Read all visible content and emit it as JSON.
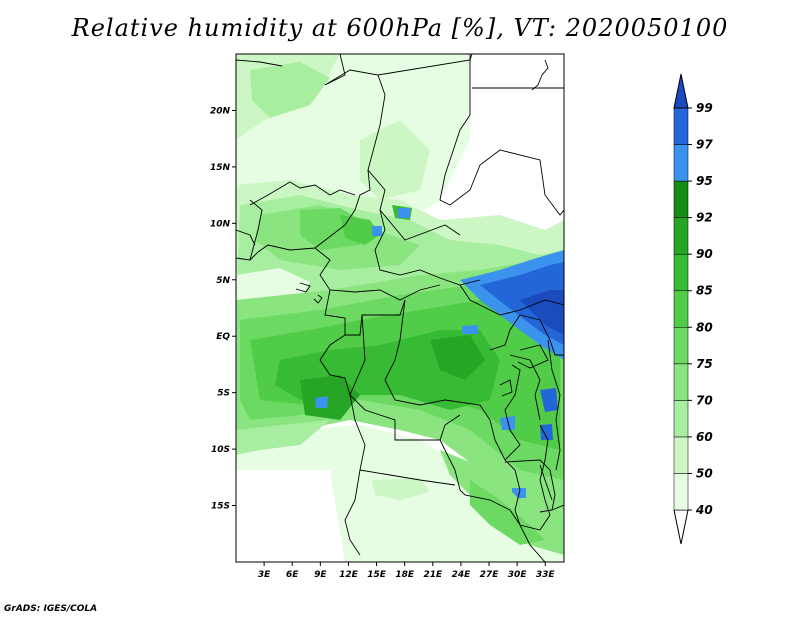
{
  "title": "Relative humidity at 600hPa [%], VT: 2020050100",
  "credit": "GrADS: IGES/COLA",
  "map": {
    "lon_range": [
      0,
      35
    ],
    "lat_range": [
      -20,
      25
    ],
    "lon_ticks": [
      {
        "value": 3,
        "label": "3E"
      },
      {
        "value": 6,
        "label": "6E"
      },
      {
        "value": 9,
        "label": "9E"
      },
      {
        "value": 12,
        "label": "12E"
      },
      {
        "value": 15,
        "label": "15E"
      },
      {
        "value": 18,
        "label": "18E"
      },
      {
        "value": 21,
        "label": "21E"
      },
      {
        "value": 24,
        "label": "24E"
      },
      {
        "value": 27,
        "label": "27E"
      },
      {
        "value": 30,
        "label": "30E"
      },
      {
        "value": 33,
        "label": "33E"
      }
    ],
    "lat_ticks": [
      {
        "value": 20,
        "label": "20N"
      },
      {
        "value": 15,
        "label": "15N"
      },
      {
        "value": 10,
        "label": "10N"
      },
      {
        "value": 5,
        "label": "5N"
      },
      {
        "value": 0,
        "label": "EQ"
      },
      {
        "value": -5,
        "label": "5S"
      },
      {
        "value": -10,
        "label": "10S"
      },
      {
        "value": -15,
        "label": "15S"
      }
    ]
  },
  "colorbar": {
    "levels": [
      "40",
      "50",
      "60",
      "70",
      "75",
      "80",
      "85",
      "90",
      "92",
      "95",
      "97",
      "99"
    ],
    "colors": [
      "#ffffff",
      "#e6fce3",
      "#ccf7c5",
      "#a8eea0",
      "#8ae480",
      "#6cd963",
      "#50cc48",
      "#38bb34",
      "#27a626",
      "#138d13",
      "#3c93ed",
      "#2366d8",
      "#1a4cbe"
    ]
  }
}
